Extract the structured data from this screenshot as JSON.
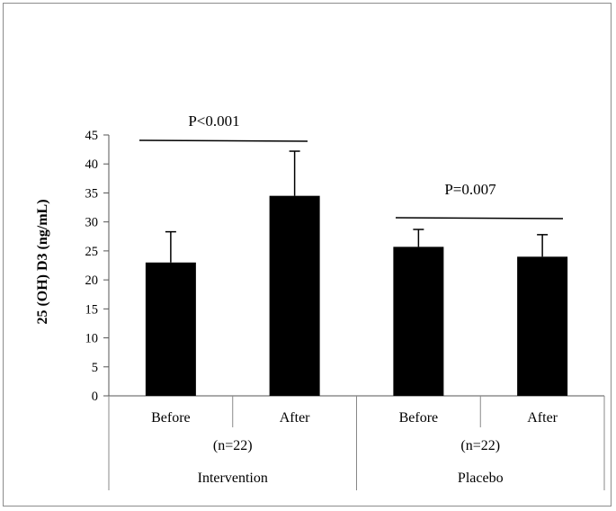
{
  "chart_data": {
    "type": "bar",
    "ylabel": "25 (OH) D3 (ng/mL)",
    "ylim": [
      0,
      45
    ],
    "yticks": [
      0,
      5,
      10,
      15,
      20,
      25,
      30,
      35,
      40,
      45
    ],
    "groups": [
      {
        "name": "Intervention",
        "n_label": "(n=22)",
        "categories": [
          "Before",
          "After"
        ]
      },
      {
        "name": "Placebo",
        "n_label": "(n=22)",
        "categories": [
          "Before",
          "After"
        ]
      }
    ],
    "values": [
      23,
      34.5,
      25.7,
      24
    ],
    "error_upper": [
      28.3,
      42.2,
      28.7,
      27.8
    ],
    "annotations": [
      {
        "text": "P<0.001",
        "group": "Intervention"
      },
      {
        "text": "P=0.007",
        "group": "Placebo"
      }
    ],
    "bar_color": "#000000"
  }
}
